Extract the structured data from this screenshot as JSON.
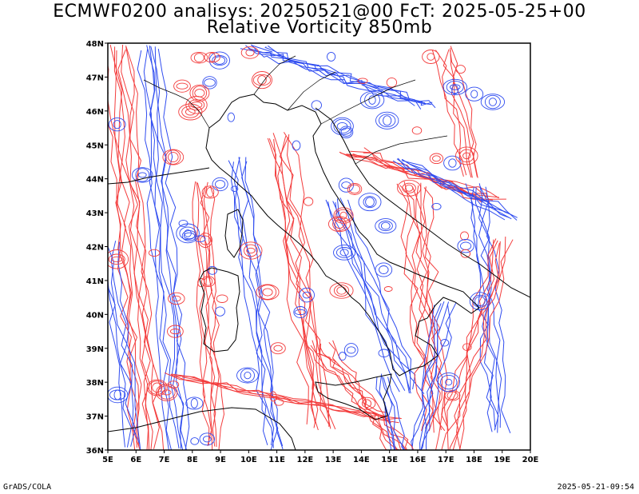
{
  "title": {
    "line1": "ECMWF0200 analisys: 20250521@00 FcT: 2025-05-25+00",
    "line2": "Relative Vorticity 850mb"
  },
  "map": {
    "lon_range": [
      5,
      20
    ],
    "lat_range": [
      36,
      48
    ],
    "lon_ticks": [
      "5E",
      "6E",
      "7E",
      "8E",
      "9E",
      "10E",
      "11E",
      "12E",
      "13E",
      "14E",
      "15E",
      "16E",
      "17E",
      "18E",
      "19E",
      "20E"
    ],
    "lat_ticks": [
      "36N",
      "37N",
      "38N",
      "39N",
      "40N",
      "41N",
      "42N",
      "43N",
      "44N",
      "45N",
      "46N",
      "47N",
      "48N"
    ],
    "colors": {
      "positive": "#f33c3c",
      "negative": "#2f4cf0",
      "coast": "#000000"
    }
  },
  "footer": {
    "left": "GrADS/COLA",
    "right": "2025-05-21-09:54"
  }
}
